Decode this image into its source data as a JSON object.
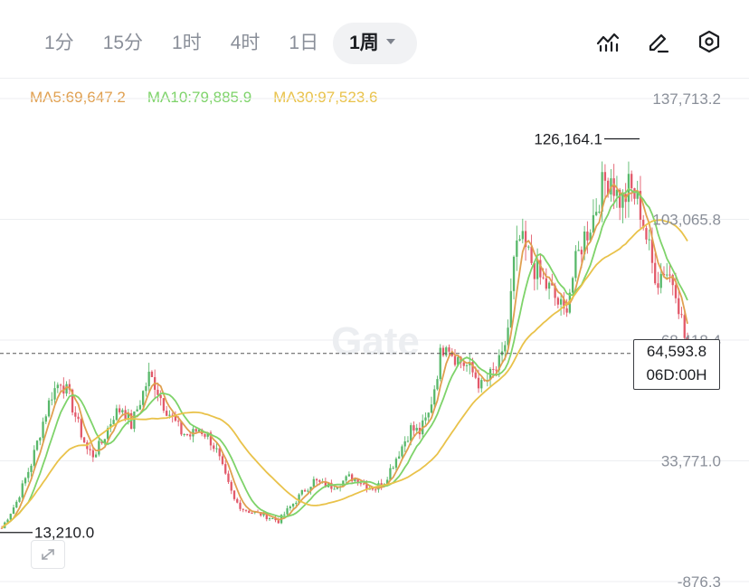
{
  "toolbar": {
    "tabs": [
      "1分",
      "15分",
      "1时",
      "4时",
      "1日",
      "1周"
    ],
    "active_tab": 5
  },
  "tools": [
    "indicator-icon",
    "pencil-icon",
    "settings-hexagon-icon"
  ],
  "ma": {
    "ma5": "MA5:69,647.2",
    "ma10": "MA10:79,885.9",
    "ma30": "MA30:97,523.6",
    "colors": {
      "ma5": "#e0a050",
      "ma10": "#7ed36a",
      "ma30": "#e9c24a"
    }
  },
  "watermark": "Gate",
  "colors": {
    "up": "#58b86a",
    "down": "#e2596a",
    "grid": "#eceef1",
    "text": "#8a8f99"
  },
  "chart_data": {
    "type": "candlestick",
    "interval": "1周",
    "y_ticks": [
      "137,713.2",
      "103,065.8",
      "68,418.4",
      "33,771.0",
      "-876.3"
    ],
    "ylim": [
      -876.3,
      137713.2
    ],
    "high_marker": "126,164.1",
    "low_marker": "13,210.0",
    "current_price": "64,593.8",
    "countdown": "06D:00H",
    "current_value": 64593.8,
    "high_value": 126164.1,
    "low_value": 13210.0,
    "path_points": [
      [
        0,
        14500
      ],
      [
        5,
        22000
      ],
      [
        10,
        33000
      ],
      [
        14,
        45000
      ],
      [
        17,
        53000
      ],
      [
        20,
        57000
      ],
      [
        23,
        52000
      ],
      [
        26,
        44000
      ],
      [
        29,
        37000
      ],
      [
        31,
        35500
      ],
      [
        34,
        39000
      ],
      [
        38,
        47000
      ],
      [
        41,
        49000
      ],
      [
        44,
        44000
      ],
      [
        47,
        51000
      ],
      [
        50,
        58000
      ],
      [
        52,
        56000
      ],
      [
        55,
        50000
      ],
      [
        58,
        46000
      ],
      [
        61,
        42000
      ],
      [
        64,
        41000
      ],
      [
        67,
        43000
      ],
      [
        70,
        41000
      ],
      [
        73,
        36500
      ],
      [
        76,
        29000
      ],
      [
        79,
        22500
      ],
      [
        82,
        20000
      ],
      [
        85,
        19000
      ],
      [
        88,
        18500
      ],
      [
        91,
        17500
      ],
      [
        94,
        16500
      ],
      [
        97,
        19500
      ],
      [
        100,
        22500
      ],
      [
        103,
        25500
      ],
      [
        106,
        28000
      ],
      [
        109,
        27000
      ],
      [
        112,
        26500
      ],
      [
        115,
        27500
      ],
      [
        118,
        29000
      ],
      [
        121,
        28500
      ],
      [
        124,
        26500
      ],
      [
        127,
        26000
      ],
      [
        130,
        28000
      ],
      [
        133,
        33000
      ],
      [
        136,
        38000
      ],
      [
        139,
        43000
      ],
      [
        142,
        42000
      ],
      [
        145,
        47000
      ],
      [
        147,
        55000
      ],
      [
        149,
        64000
      ],
      [
        151,
        69000
      ],
      [
        153,
        65000
      ],
      [
        155,
        63000
      ],
      [
        158,
        61000
      ],
      [
        161,
        58000
      ],
      [
        163,
        55000
      ],
      [
        166,
        58000
      ],
      [
        168,
        60000
      ],
      [
        170,
        63000
      ],
      [
        172,
        72000
      ],
      [
        174,
        90000
      ],
      [
        176,
        97000
      ],
      [
        178,
        94000
      ],
      [
        180,
        91000
      ],
      [
        183,
        86000
      ],
      [
        185,
        84000
      ],
      [
        187,
        82000
      ],
      [
        189,
        79000
      ],
      [
        191,
        76000
      ],
      [
        193,
        83000
      ],
      [
        195,
        90000
      ],
      [
        197,
        96000
      ],
      [
        199,
        100000
      ],
      [
        201,
        104000
      ],
      [
        203,
        110000
      ],
      [
        205,
        114000
      ],
      [
        207,
        116000
      ],
      [
        209,
        110000
      ],
      [
        211,
        108000
      ],
      [
        213,
        112000
      ],
      [
        215,
        110000
      ],
      [
        217,
        106000
      ],
      [
        219,
        98000
      ],
      [
        221,
        90000
      ],
      [
        223,
        86000
      ],
      [
        225,
        89000
      ],
      [
        227,
        87000
      ],
      [
        229,
        84000
      ],
      [
        231,
        74000
      ],
      [
        233,
        64600
      ]
    ]
  }
}
